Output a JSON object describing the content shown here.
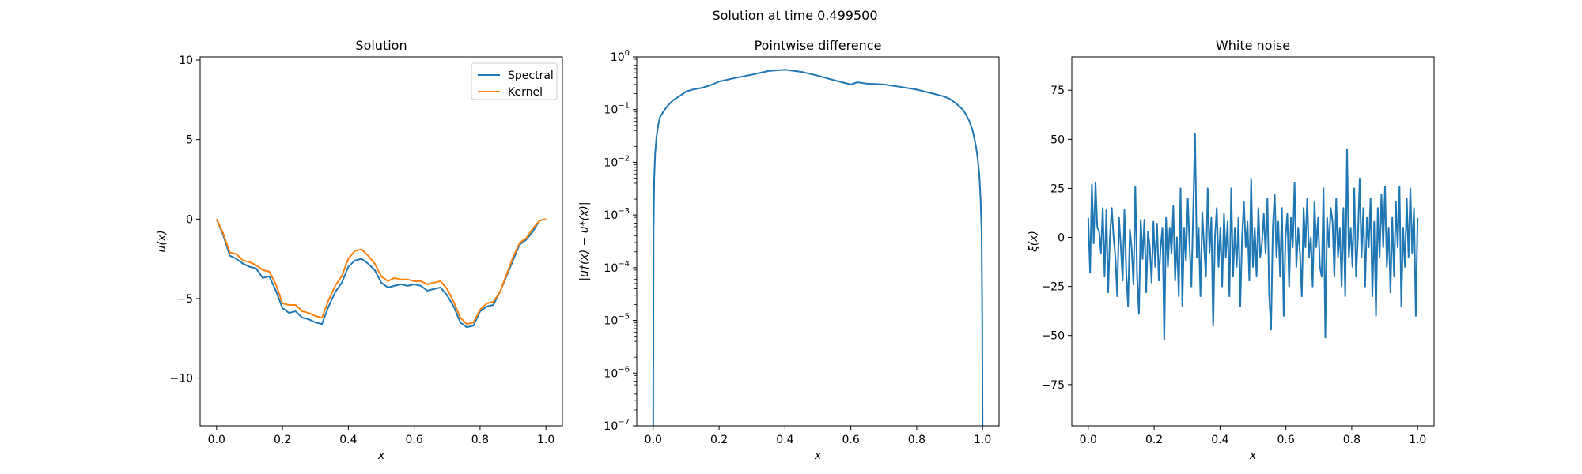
{
  "figure": {
    "suptitle": "Solution at time 0.499500"
  },
  "colors": {
    "spectral": "#1f77b4",
    "kernel": "#ff7f0e",
    "noise": "#1f77b4"
  },
  "chart_data": [
    {
      "type": "line",
      "title": "Solution",
      "xlabel": "x",
      "ylabel": "u(x)",
      "xlim": [
        -0.05,
        1.05
      ],
      "ylim": [
        -13.0,
        10.2
      ],
      "xticks": [
        0.0,
        0.2,
        0.4,
        0.6,
        0.8,
        1.0
      ],
      "xtick_labels": [
        "0.0",
        "0.2",
        "0.4",
        "0.6",
        "0.8",
        "1.0"
      ],
      "yticks": [
        10,
        5,
        0,
        -5,
        -10
      ],
      "ytick_labels": [
        "10",
        "5",
        "0",
        "−5",
        "−10"
      ],
      "legend": {
        "placement": "upper-right",
        "entries": [
          "Spectral",
          "Kernel"
        ]
      },
      "series": [
        {
          "name": "Spectral",
          "x": [
            0.0,
            0.02,
            0.04,
            0.06,
            0.08,
            0.1,
            0.12,
            0.14,
            0.16,
            0.18,
            0.2,
            0.22,
            0.24,
            0.26,
            0.28,
            0.3,
            0.32,
            0.34,
            0.36,
            0.38,
            0.4,
            0.42,
            0.44,
            0.46,
            0.48,
            0.5,
            0.52,
            0.54,
            0.56,
            0.58,
            0.6,
            0.62,
            0.64,
            0.66,
            0.68,
            0.7,
            0.72,
            0.74,
            0.76,
            0.78,
            0.8,
            0.82,
            0.84,
            0.86,
            0.88,
            0.9,
            0.92,
            0.94,
            0.96,
            0.98,
            1.0
          ],
          "y": [
            0.0,
            -1.0,
            -2.3,
            -2.5,
            -2.8,
            -3.0,
            -3.1,
            -3.7,
            -3.6,
            -4.5,
            -5.6,
            -5.9,
            -5.8,
            -6.2,
            -6.3,
            -6.5,
            -6.6,
            -5.5,
            -4.6,
            -4.0,
            -3.0,
            -2.6,
            -2.5,
            -2.8,
            -3.2,
            -4.0,
            -4.3,
            -4.2,
            -4.1,
            -4.2,
            -4.1,
            -4.2,
            -4.5,
            -4.4,
            -4.3,
            -4.8,
            -5.5,
            -6.5,
            -6.8,
            -6.7,
            -5.8,
            -5.5,
            -5.4,
            -4.6,
            -3.6,
            -2.6,
            -1.6,
            -1.3,
            -0.8,
            -0.1,
            0.0
          ]
        },
        {
          "name": "Kernel",
          "x": [
            0.0,
            0.02,
            0.04,
            0.06,
            0.08,
            0.1,
            0.12,
            0.14,
            0.16,
            0.18,
            0.2,
            0.22,
            0.24,
            0.26,
            0.28,
            0.3,
            0.32,
            0.34,
            0.36,
            0.38,
            0.4,
            0.42,
            0.44,
            0.46,
            0.48,
            0.5,
            0.52,
            0.54,
            0.56,
            0.58,
            0.6,
            0.62,
            0.64,
            0.66,
            0.68,
            0.7,
            0.72,
            0.74,
            0.76,
            0.78,
            0.8,
            0.82,
            0.84,
            0.86,
            0.88,
            0.9,
            0.92,
            0.94,
            0.96,
            0.98,
            1.0
          ],
          "y": [
            0.0,
            -0.9,
            -2.1,
            -2.2,
            -2.6,
            -2.7,
            -2.9,
            -3.2,
            -3.3,
            -4.1,
            -5.3,
            -5.4,
            -5.4,
            -5.8,
            -5.9,
            -6.1,
            -6.2,
            -5.1,
            -4.2,
            -3.6,
            -2.5,
            -2.0,
            -1.9,
            -2.3,
            -2.8,
            -3.6,
            -3.9,
            -3.7,
            -3.8,
            -3.8,
            -3.9,
            -3.9,
            -4.1,
            -4.0,
            -3.9,
            -4.4,
            -5.2,
            -6.2,
            -6.6,
            -6.5,
            -5.7,
            -5.3,
            -5.2,
            -4.6,
            -3.5,
            -2.4,
            -1.5,
            -1.2,
            -0.6,
            -0.1,
            0.0
          ]
        }
      ]
    },
    {
      "type": "line",
      "title": "Pointwise difference",
      "xlabel": "x",
      "ylabel": "|u†(x) − u*(x)|",
      "yscale": "log",
      "xlim": [
        -0.05,
        1.05
      ],
      "ylim": [
        1e-07,
        1.0
      ],
      "xticks": [
        0.0,
        0.2,
        0.4,
        0.6,
        0.8,
        1.0
      ],
      "xtick_labels": [
        "0.0",
        "0.2",
        "0.4",
        "0.6",
        "0.8",
        "1.0"
      ],
      "yticks": [
        1.0,
        0.1,
        0.01,
        0.001,
        0.0001,
        1e-05,
        1e-06,
        1e-07
      ],
      "ytick_labels": [
        "10^0",
        "10^-1",
        "10^-2",
        "10^-3",
        "10^-4",
        "10^-5",
        "10^-6",
        "10^-7"
      ],
      "series": [
        {
          "x": [
            0.0,
            0.001,
            0.003,
            0.006,
            0.01,
            0.015,
            0.02,
            0.03,
            0.04,
            0.05,
            0.06,
            0.08,
            0.1,
            0.12,
            0.15,
            0.18,
            0.2,
            0.25,
            0.3,
            0.35,
            0.4,
            0.45,
            0.5,
            0.55,
            0.6,
            0.62,
            0.65,
            0.7,
            0.75,
            0.8,
            0.85,
            0.88,
            0.9,
            0.92,
            0.94,
            0.95,
            0.96,
            0.97,
            0.98,
            0.985,
            0.99,
            0.994,
            0.997,
            0.999,
            1.0
          ],
          "y": [
            1e-07,
            0.0005,
            0.005,
            0.015,
            0.03,
            0.05,
            0.07,
            0.09,
            0.11,
            0.13,
            0.15,
            0.18,
            0.22,
            0.24,
            0.26,
            0.3,
            0.34,
            0.4,
            0.46,
            0.54,
            0.57,
            0.52,
            0.44,
            0.36,
            0.3,
            0.33,
            0.31,
            0.3,
            0.27,
            0.24,
            0.2,
            0.18,
            0.16,
            0.13,
            0.1,
            0.08,
            0.06,
            0.04,
            0.02,
            0.012,
            0.006,
            0.002,
            0.0005,
            1e-05,
            1e-07
          ]
        }
      ]
    },
    {
      "type": "line",
      "title": "White noise",
      "xlabel": "x",
      "ylabel": "ξ(x)",
      "xlim": [
        -0.05,
        1.05
      ],
      "ylim": [
        -96,
        92
      ],
      "xticks": [
        0.0,
        0.2,
        0.4,
        0.6,
        0.8,
        1.0
      ],
      "xtick_labels": [
        "0.0",
        "0.2",
        "0.4",
        "0.6",
        "0.8",
        "1.0"
      ],
      "yticks": [
        75,
        50,
        25,
        0,
        -25,
        -50,
        -75
      ],
      "ytick_labels": [
        "75",
        "50",
        "25",
        "0",
        "−25",
        "−50",
        "−75"
      ],
      "series": [
        {
          "x_start": 0.0,
          "x_end": 1.0,
          "y": [
            10,
            -18,
            27,
            -3,
            28,
            5,
            3,
            -8,
            15,
            -20,
            14,
            -28,
            1,
            15,
            0,
            -10,
            -30,
            10,
            -5,
            -22,
            14,
            -18,
            -35,
            4,
            -6,
            -24,
            26,
            -20,
            -39,
            9,
            -11,
            9,
            -28,
            3,
            -5,
            -23,
            8,
            -15,
            7,
            -22,
            -5,
            5,
            -52,
            10,
            -15,
            5,
            -8,
            16,
            -22,
            0,
            -30,
            25,
            -35,
            5,
            -12,
            20,
            -5,
            -25,
            14,
            53,
            -10,
            5,
            -30,
            13,
            -5,
            -20,
            25,
            -8,
            10,
            -45,
            0,
            15,
            -15,
            5,
            -25,
            12,
            -10,
            8,
            -30,
            25,
            -20,
            5,
            -15,
            10,
            -35,
            0,
            18,
            -5,
            8,
            -22,
            30,
            -15,
            5,
            -20,
            15,
            -10,
            -3,
            12,
            -8,
            20,
            -30,
            -47,
            5,
            22,
            -10,
            8,
            -20,
            15,
            -40,
            0,
            12,
            -25,
            10,
            -5,
            28,
            -15,
            5,
            -8,
            -30,
            15,
            -5,
            20,
            -10,
            0,
            -25,
            18,
            -5,
            10,
            -15,
            -20,
            25,
            -51,
            10,
            -5,
            15,
            8,
            -20,
            20,
            -10,
            5,
            -25,
            15,
            -30,
            45,
            -10,
            5,
            -15,
            25,
            -20,
            0,
            30,
            -10,
            15,
            -25,
            10,
            -5,
            20,
            -30,
            8,
            -40,
            15,
            -10,
            22,
            -5,
            26,
            -15,
            5,
            -28,
            10,
            -20,
            18,
            -5,
            26,
            -35,
            5,
            -15,
            20,
            -10,
            25,
            -8,
            15,
            -40,
            10
          ]
        }
      ]
    }
  ]
}
